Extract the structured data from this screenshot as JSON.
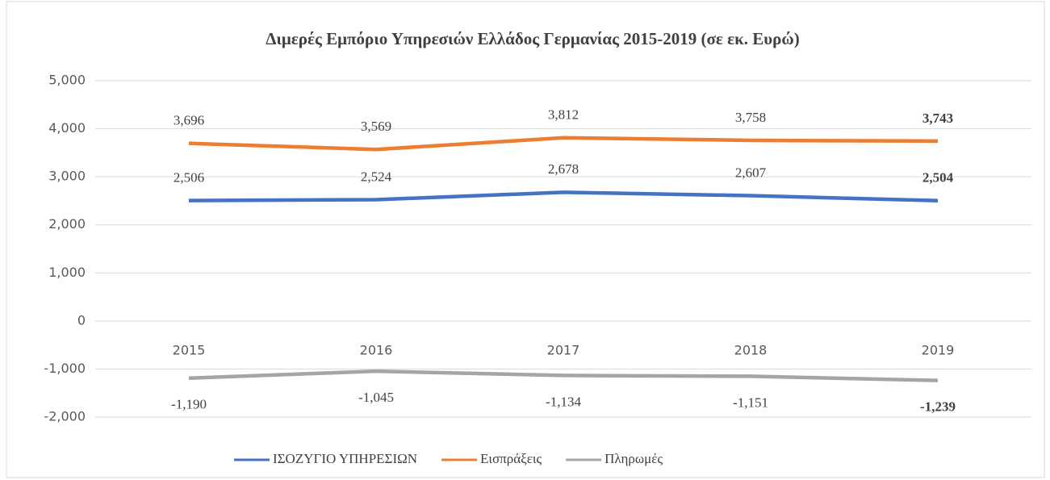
{
  "chart_data": {
    "type": "line",
    "title": "Διμερές Εμπόριο Υπηρεσιών Ελλάδος Γερμανίας 2015-2019 (σε εκ. Ευρώ)",
    "categories": [
      "2015",
      "2016",
      "2017",
      "2018",
      "2019"
    ],
    "series": [
      {
        "name": "ΙΣΟΖΥΓΙΟ ΥΠΗΡΕΣΙΩΝ",
        "color": "#4472c4",
        "values": [
          2506,
          2524,
          2678,
          2607,
          2504
        ],
        "value_labels": [
          "2,506",
          "2,524",
          "2,678",
          "2,607",
          "2,504"
        ]
      },
      {
        "name": "Εισπράξεις",
        "color": "#ed7d31",
        "values": [
          3696,
          3569,
          3812,
          3758,
          3743
        ],
        "value_labels": [
          "3,696",
          "3,569",
          "3,812",
          "3,758",
          "3,743"
        ]
      },
      {
        "name": "Πληρωμές",
        "color": "#a5a5a5",
        "values": [
          -1190,
          -1045,
          -1134,
          -1151,
          -1239
        ],
        "value_labels": [
          "-1,190",
          "-1,045",
          "-1,134",
          "-1,151",
          "-1,239"
        ]
      }
    ],
    "ylim": [
      -2000,
      5000
    ],
    "yticks": [
      {
        "value": -2000,
        "label": "-2,000"
      },
      {
        "value": -1000,
        "label": "-1,000"
      },
      0,
      {
        "value": 1000,
        "label": "1,000"
      },
      {
        "value": 2000,
        "label": "2,000"
      },
      {
        "value": 3000,
        "label": "3,000"
      },
      {
        "value": 4000,
        "label": "4,000"
      },
      {
        "value": 5000,
        "label": "5,000"
      }
    ],
    "grid": true,
    "legend": "bottom"
  }
}
